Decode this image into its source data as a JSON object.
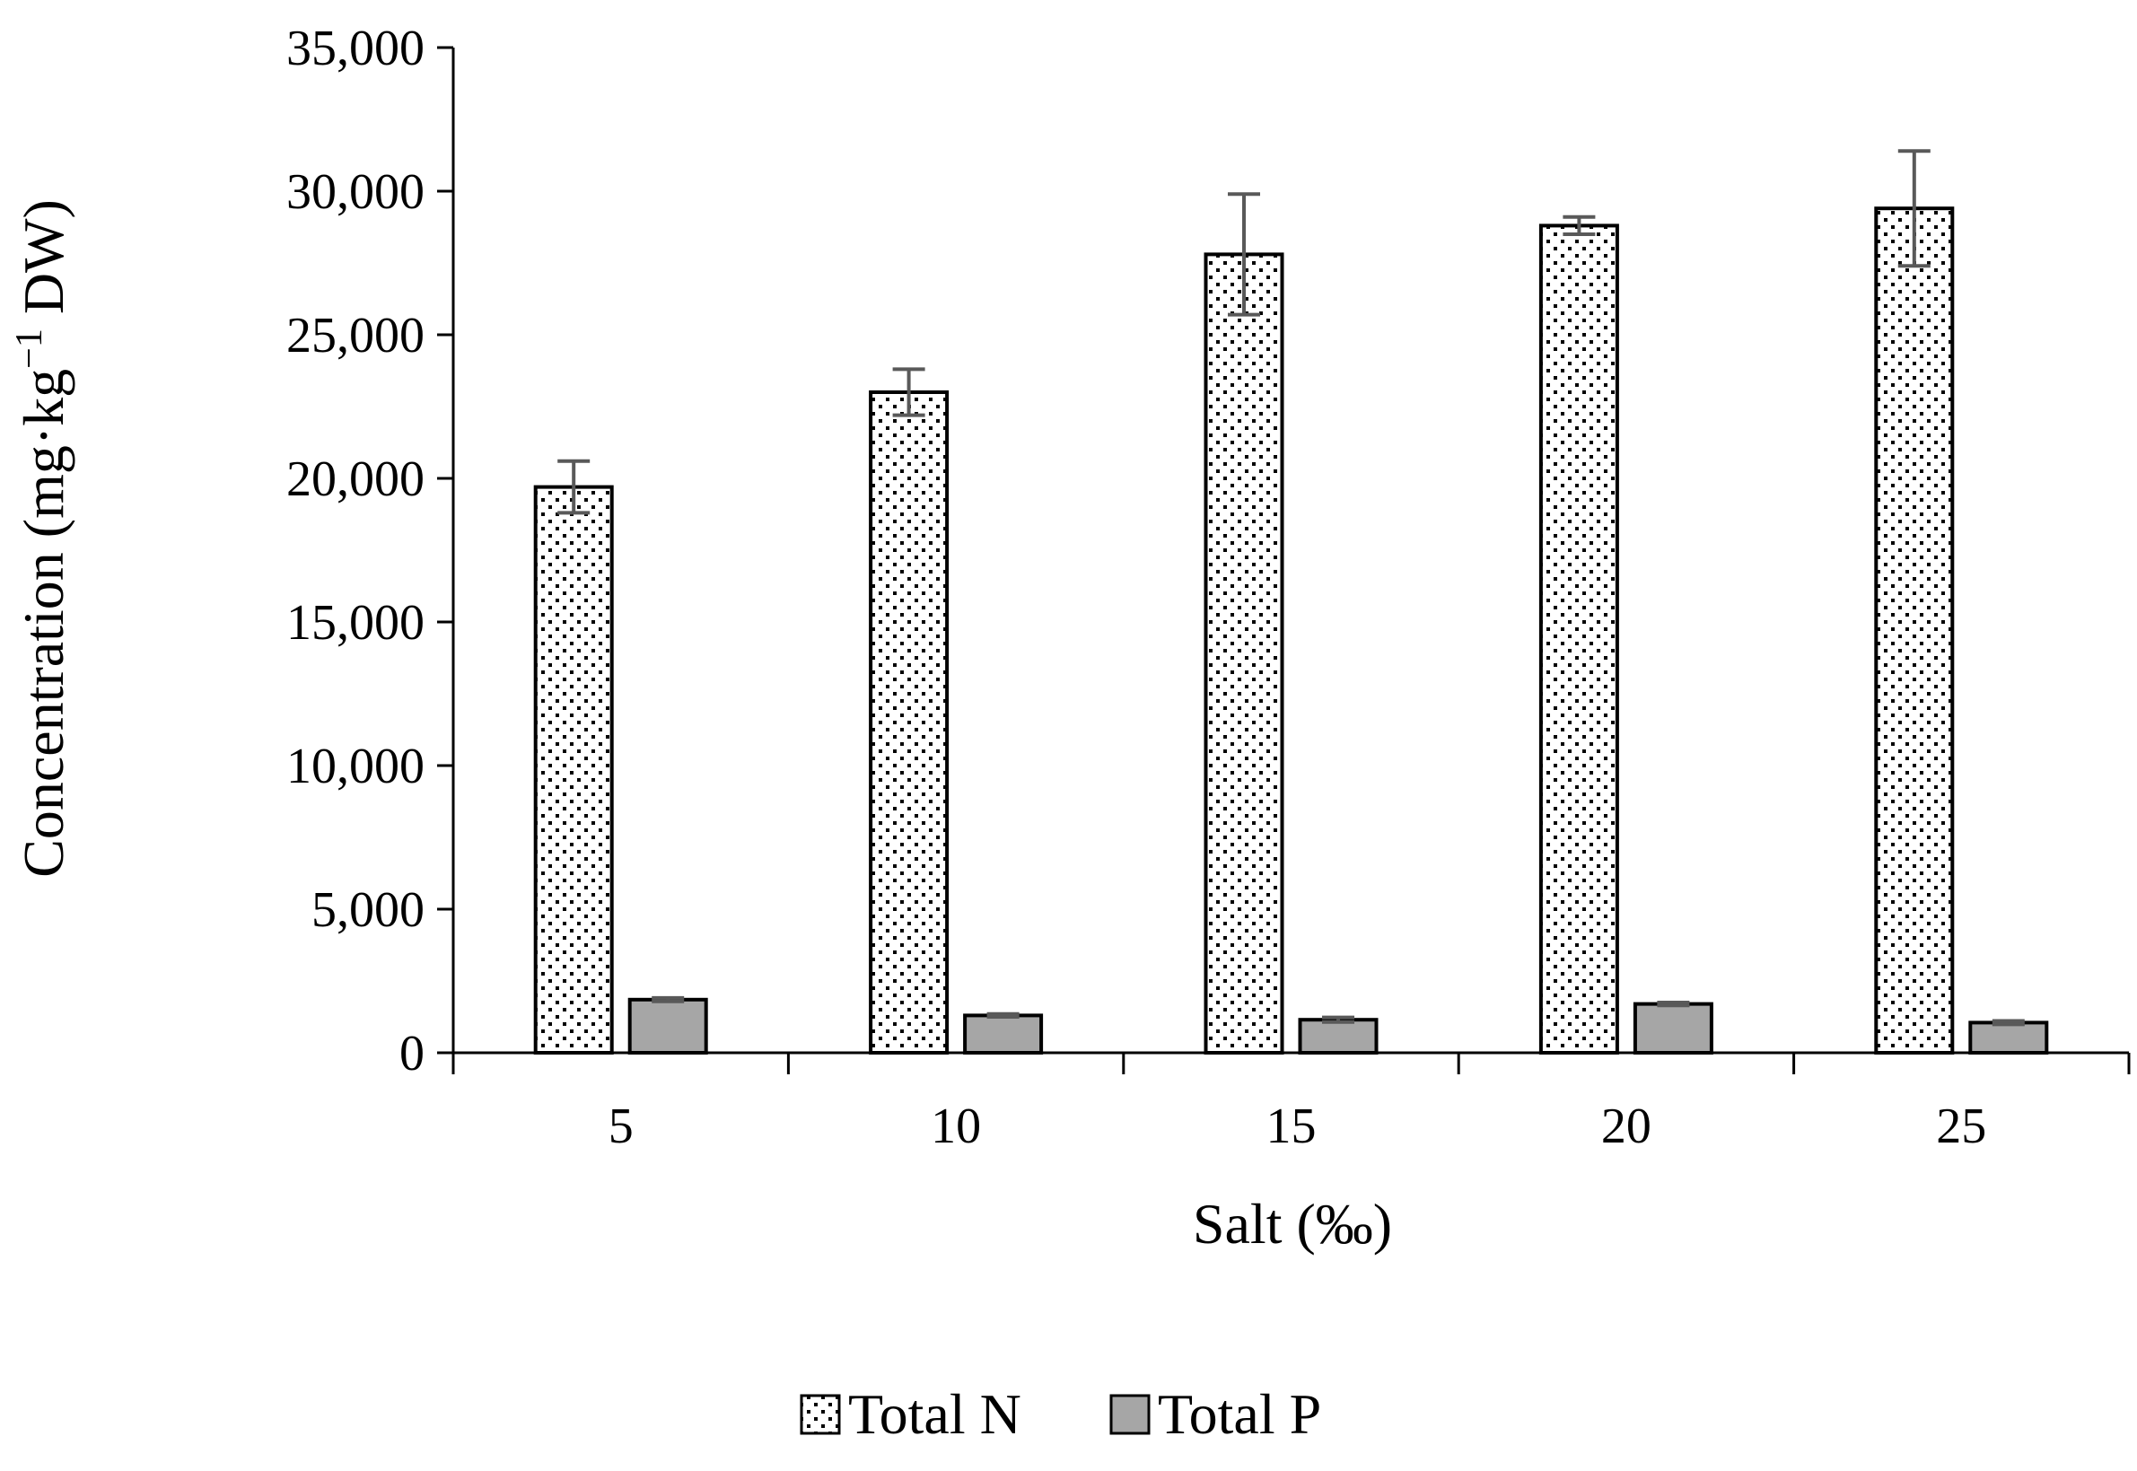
{
  "chart_data": {
    "type": "bar",
    "title": "",
    "xlabel": "Salt (‰)",
    "ylabel_main": "Concentration (mg·kg",
    "ylabel_sup": "−1",
    "ylabel_tail": " DW)",
    "categories": [
      "5",
      "10",
      "15",
      "20",
      "25"
    ],
    "ylim": [
      0,
      35000
    ],
    "yticks": [
      0,
      5000,
      10000,
      15000,
      20000,
      25000,
      30000,
      35000
    ],
    "ytick_labels": [
      "0",
      "5,000",
      "10,000",
      "15,000",
      "20,000",
      "25,000",
      "30,000",
      "35,000"
    ],
    "grid": false,
    "legend_position": "bottom",
    "series": [
      {
        "name": "Total N",
        "values": [
          19700,
          23000,
          27800,
          28800,
          29400
        ],
        "errors": [
          900,
          800,
          2100,
          300,
          2000
        ],
        "fill": "dotted",
        "color": "#ffffff"
      },
      {
        "name": "Total P",
        "values": [
          1850,
          1300,
          1150,
          1700,
          1050
        ],
        "errors": [
          60,
          50,
          80,
          50,
          60
        ],
        "fill": "solid",
        "color": "#a6a6a6"
      }
    ],
    "colors": {
      "axis": "#000000",
      "bar_outline": "#000000",
      "error_bar": "#595959",
      "dot": "#000000"
    }
  }
}
